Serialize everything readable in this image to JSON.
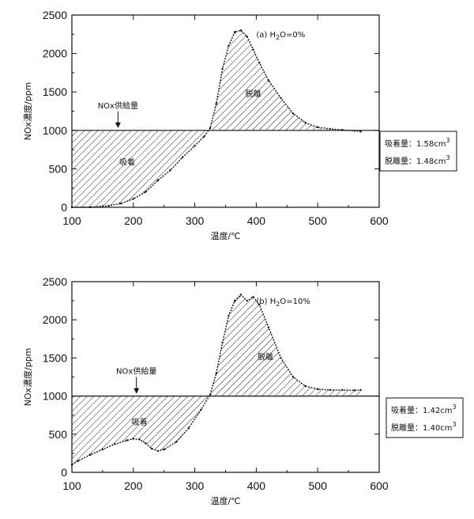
{
  "chart_data": [
    {
      "type": "area",
      "title": "(a) H2O=0%",
      "title_parts": {
        "prefix": "(a) H",
        "sub": "2",
        "suffix": "O=0%"
      },
      "xlabel": "温度/℃",
      "ylabel": "NOx濃度/ppm",
      "xlim": [
        100,
        600
      ],
      "ylim": [
        0,
        2500
      ],
      "xticks": [
        "100",
        "200",
        "300",
        "400",
        "500",
        "600"
      ],
      "yticks": [
        "0",
        "500",
        "1000",
        "1500",
        "2000",
        "2500"
      ],
      "supply_level": 1000,
      "supply_label": "NOx供給量",
      "supply_arrow_x": 175,
      "adsorption_label": "吸着",
      "desorption_label": "脱離",
      "adsorption_label_pos": [
        190,
        550
      ],
      "desorption_label_pos": [
        395,
        1440
      ],
      "summary": [
        {
          "label": "吸着量：1.58cm",
          "sup": "3"
        },
        {
          "label": "脱離量：1.48cm",
          "sup": "3"
        }
      ],
      "x": [
        100,
        130,
        160,
        180,
        200,
        220,
        240,
        260,
        280,
        300,
        315,
        325,
        335,
        345,
        355,
        365,
        375,
        385,
        395,
        405,
        420,
        440,
        460,
        480,
        500,
        520,
        540,
        560,
        570
      ],
      "y": [
        0,
        0,
        20,
        50,
        110,
        200,
        350,
        480,
        650,
        800,
        920,
        1030,
        1350,
        1800,
        2100,
        2280,
        2300,
        2220,
        2050,
        1880,
        1650,
        1420,
        1220,
        1100,
        1040,
        1020,
        1005,
        995,
        985
      ]
    },
    {
      "type": "area",
      "title": "(b) H2O=10%",
      "title_parts": {
        "prefix": "(b) H",
        "sub": "2",
        "suffix": "O=10%"
      },
      "xlabel": "温度/℃",
      "ylabel": "NOx濃度/ppm",
      "xlim": [
        100,
        600
      ],
      "ylim": [
        0,
        2500
      ],
      "xticks": [
        "100",
        "200",
        "300",
        "400",
        "500",
        "600"
      ],
      "yticks": [
        "0",
        "500",
        "1000",
        "1500",
        "2000",
        "2500"
      ],
      "supply_level": 1000,
      "supply_label": "NOx供給量",
      "supply_arrow_x": 205,
      "adsorption_label": "吸着",
      "desorption_label": "脱離",
      "adsorption_label_pos": [
        210,
        620
      ],
      "desorption_label_pos": [
        415,
        1480
      ],
      "summary": [
        {
          "label": "吸着量：1.42cm",
          "sup": "3"
        },
        {
          "label": "脱離量：1.40cm",
          "sup": "3"
        }
      ],
      "x": [
        100,
        110,
        130,
        150,
        170,
        190,
        200,
        210,
        220,
        230,
        240,
        250,
        270,
        290,
        310,
        325,
        335,
        345,
        355,
        365,
        375,
        385,
        395,
        405,
        420,
        440,
        460,
        480,
        500,
        520,
        540,
        560,
        570
      ],
      "y": [
        100,
        150,
        230,
        300,
        370,
        420,
        440,
        430,
        380,
        310,
        280,
        300,
        400,
        580,
        820,
        1020,
        1300,
        1700,
        2050,
        2250,
        2330,
        2250,
        2300,
        2200,
        1900,
        1500,
        1250,
        1130,
        1090,
        1080,
        1080,
        1075,
        1080
      ]
    }
  ]
}
